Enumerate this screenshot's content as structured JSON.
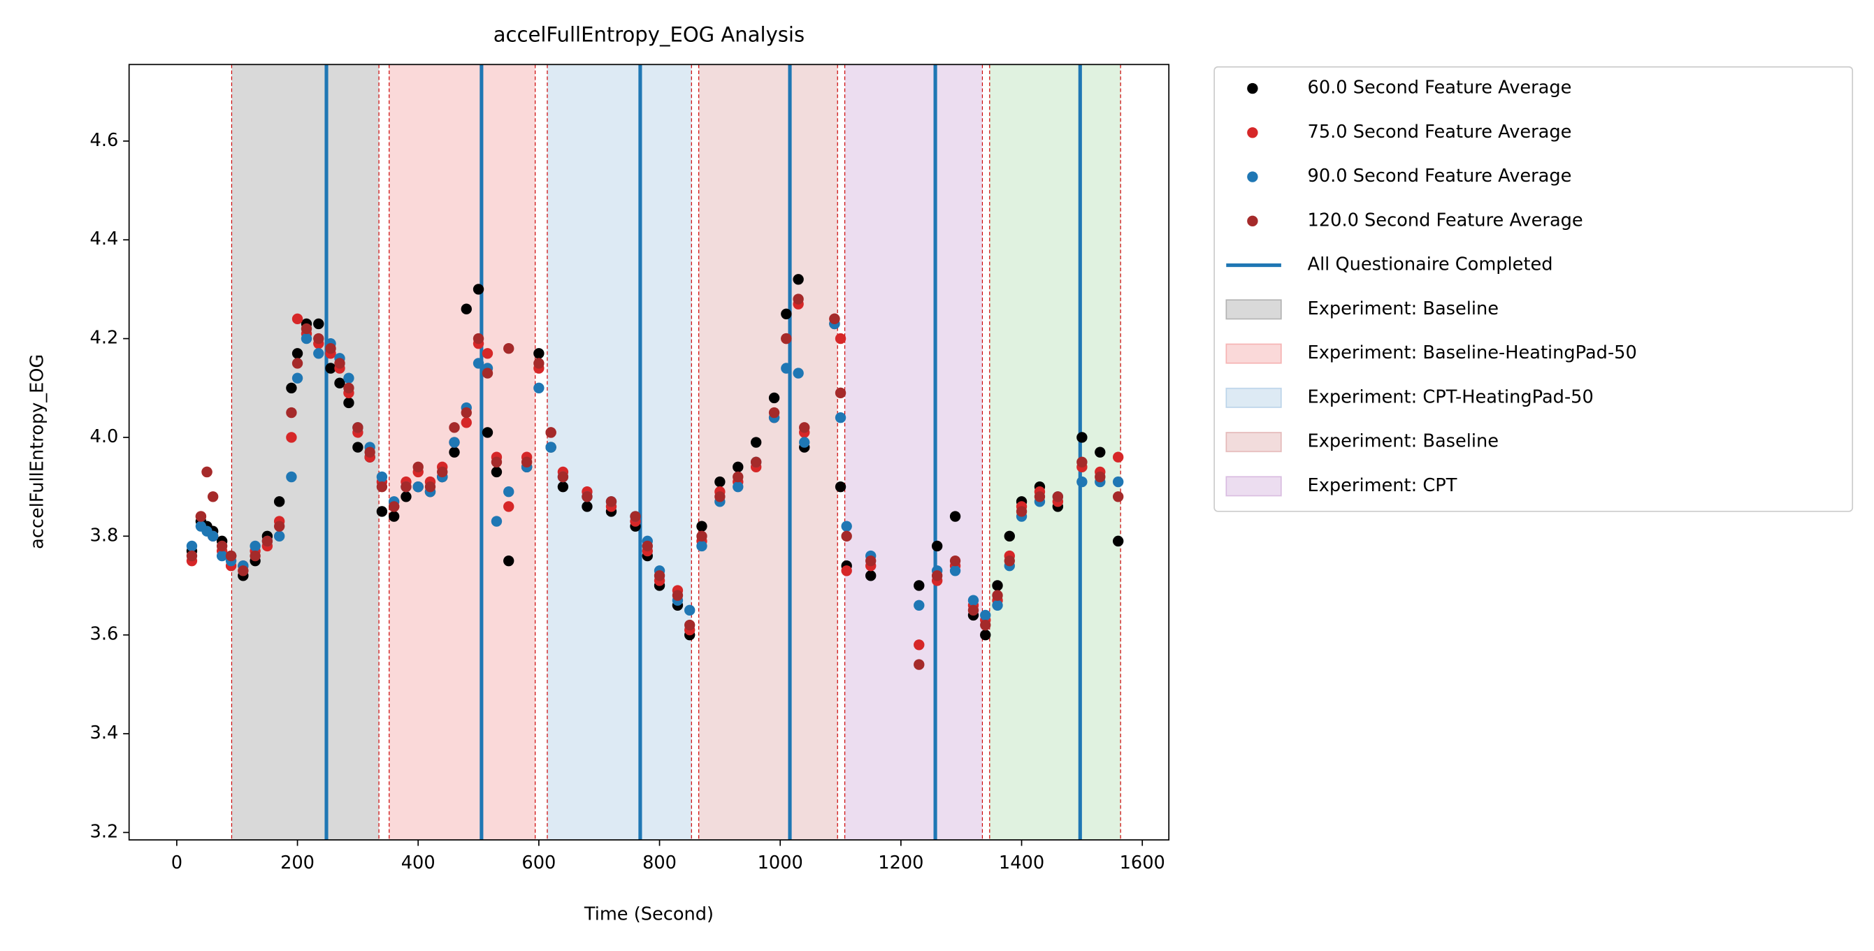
{
  "chart_data": {
    "type": "scatter",
    "title": "accelFullEntropy_EOG Analysis",
    "x_label": "Time (Second)",
    "y_label": "accelFullEntropy_EOG",
    "xlim": [
      -79,
      1644
    ],
    "ylim": [
      3.185,
      4.755
    ],
    "xticks": [
      0,
      200,
      400,
      600,
      800,
      1000,
      1200,
      1400,
      1600
    ],
    "yticks": [
      3.2,
      3.4,
      3.6,
      3.8,
      {
        "value": 4,
        "label": "4.0"
      },
      4.2,
      4.4,
      4.6
    ],
    "x": [
      25,
      40,
      50,
      60,
      75,
      90,
      110,
      130,
      150,
      170,
      190,
      200,
      215,
      235,
      255,
      270,
      285,
      300,
      320,
      340,
      360,
      380,
      400,
      420,
      440,
      460,
      480,
      500,
      515,
      530,
      550,
      580,
      600,
      620,
      640,
      680,
      720,
      760,
      780,
      800,
      830,
      850,
      870,
      900,
      930,
      960,
      990,
      1010,
      1030,
      1040,
      1090,
      1100,
      1110,
      1150,
      1230,
      1260,
      1290,
      1320,
      1340,
      1360,
      1380,
      1400,
      1430,
      1460,
      1500,
      1530,
      1560
    ],
    "series": [
      {
        "name": "60.0 Second Feature Average",
        "color": "#000000",
        "values": [
          3.77,
          3.83,
          3.82,
          3.81,
          3.79,
          3.76,
          3.72,
          3.75,
          3.8,
          3.87,
          4.1,
          4.17,
          4.23,
          4.23,
          4.14,
          4.11,
          4.07,
          3.98,
          3.96,
          3.85,
          3.84,
          3.88,
          3.9,
          3.89,
          3.92,
          3.97,
          4.26,
          4.3,
          4.01,
          3.93,
          3.75,
          3.94,
          4.17,
          3.98,
          3.9,
          3.86,
          3.85,
          3.82,
          3.76,
          3.7,
          3.66,
          3.6,
          3.82,
          3.91,
          3.94,
          3.99,
          4.08,
          4.25,
          4.32,
          3.98,
          4.23,
          3.9,
          3.74,
          3.72,
          3.7,
          3.78,
          3.84,
          3.64,
          3.6,
          3.7,
          3.8,
          3.87,
          3.9,
          3.86,
          4.0,
          3.97,
          3.79
        ]
      },
      {
        "name": "75.0 Second Feature Average",
        "color": "#d62728",
        "values": [
          3.75,
          3.84,
          3.93,
          3.8,
          3.77,
          3.74,
          3.74,
          3.77,
          3.78,
          3.83,
          4.0,
          4.24,
          4.21,
          4.19,
          4.17,
          4.14,
          4.09,
          4.01,
          3.96,
          3.91,
          3.86,
          3.91,
          3.93,
          3.91,
          3.94,
          3.99,
          4.03,
          4.19,
          4.17,
          3.96,
          3.86,
          3.96,
          4.14,
          4.01,
          3.93,
          3.89,
          3.86,
          3.83,
          3.77,
          3.71,
          3.69,
          3.61,
          3.79,
          3.89,
          3.91,
          3.94,
          4.04,
          4.2,
          4.27,
          4.01,
          4.24,
          4.2,
          3.73,
          3.74,
          3.58,
          3.71,
          3.74,
          3.66,
          3.63,
          3.67,
          3.76,
          3.86,
          3.89,
          3.87,
          3.94,
          3.93,
          3.96
        ]
      },
      {
        "name": "90.0 Second Feature Average",
        "color": "#1f77b4",
        "values": [
          3.78,
          3.82,
          3.81,
          3.8,
          3.76,
          3.75,
          3.74,
          3.78,
          3.79,
          3.8,
          3.92,
          4.12,
          4.2,
          4.17,
          4.19,
          4.16,
          4.12,
          4.02,
          3.98,
          3.92,
          3.87,
          3.9,
          3.9,
          3.89,
          3.92,
          3.99,
          4.06,
          4.15,
          4.14,
          3.83,
          3.89,
          3.94,
          4.1,
          3.98,
          3.92,
          3.88,
          3.87,
          3.84,
          3.79,
          3.73,
          3.67,
          3.65,
          3.78,
          3.87,
          3.9,
          3.95,
          4.04,
          4.14,
          4.13,
          3.99,
          4.23,
          4.04,
          3.82,
          3.76,
          3.66,
          3.73,
          3.73,
          3.67,
          3.64,
          3.66,
          3.74,
          3.84,
          3.87,
          3.88,
          3.91,
          3.91,
          3.91
        ]
      },
      {
        "name": "120.0 Second Feature Average",
        "color": "#a52a2a",
        "values": [
          3.76,
          3.84,
          3.93,
          3.88,
          3.78,
          3.76,
          3.73,
          3.76,
          3.79,
          3.82,
          4.05,
          4.15,
          4.22,
          4.2,
          4.18,
          4.15,
          4.1,
          4.02,
          3.97,
          3.9,
          3.86,
          3.9,
          3.94,
          3.9,
          3.93,
          4.02,
          4.05,
          4.2,
          4.13,
          3.95,
          4.18,
          3.95,
          4.15,
          4.01,
          3.92,
          3.88,
          3.87,
          3.84,
          3.78,
          3.72,
          3.68,
          3.62,
          3.8,
          3.88,
          3.92,
          3.95,
          4.05,
          4.2,
          4.28,
          4.02,
          4.24,
          4.09,
          3.8,
          3.75,
          3.54,
          3.72,
          3.75,
          3.65,
          3.62,
          3.68,
          3.75,
          3.85,
          3.88,
          3.88,
          3.95,
          3.92,
          3.88
        ]
      }
    ],
    "vlines": {
      "name": "All Questionaire Completed",
      "color": "#1f77b4",
      "values": [
        248,
        505,
        768,
        1016,
        1257,
        1497
      ]
    },
    "spans": [
      {
        "name": "Experiment: Baseline",
        "color": "#808080",
        "start": 91,
        "end": 335
      },
      {
        "name": "Experiment: Baseline-HeatingPad-50",
        "color": "#f08080",
        "start": 352,
        "end": 594
      },
      {
        "name": "Experiment: CPT-HeatingPad-50",
        "color": "#8fb8dc",
        "start": 614,
        "end": 853
      },
      {
        "name": "Experiment: Baseline",
        "color": "#d38c8c",
        "start": 865,
        "end": 1095
      },
      {
        "name": "Experiment: CPT",
        "color": "#c08fcc",
        "start": 1107,
        "end": 1335
      },
      {
        "name": null,
        "color": "#98d498",
        "start": 1347,
        "end": 1564
      }
    ],
    "span_edge_color": "#cc0000"
  }
}
